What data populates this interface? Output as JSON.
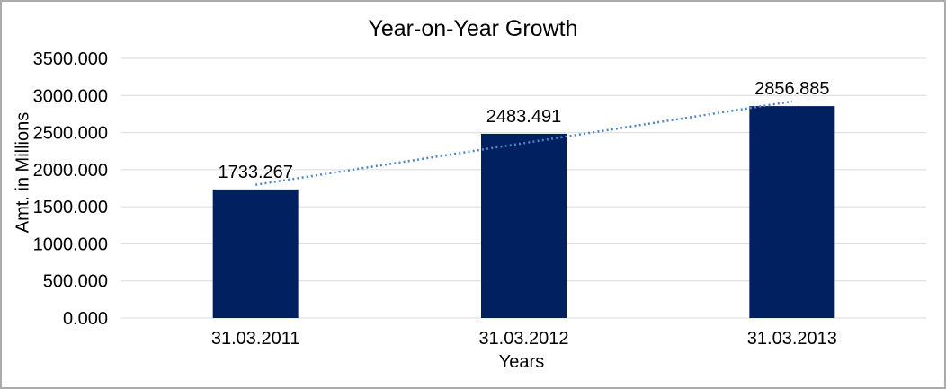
{
  "chart_data": {
    "type": "bar",
    "title": "Year-on-Year Growth",
    "xlabel": "Years",
    "ylabel": "Amt. in Millions",
    "categories": [
      "31.03.2011",
      "31.03.2012",
      "31.03.2013"
    ],
    "values": [
      1733.267,
      2483.491,
      2856.885
    ],
    "data_labels": [
      "1733.267",
      "2483.491",
      "2856.885"
    ],
    "y_ticks": [
      "3500.000",
      "3000.000",
      "2500.000",
      "2000.000",
      "1500.000",
      "1000.000",
      "500.000",
      "0.000"
    ],
    "ylim": [
      0,
      3500
    ],
    "grid": true,
    "legend": "none",
    "trendline": {
      "type": "linear",
      "style": "dotted"
    },
    "colors": {
      "bar": "#002060",
      "trendline": "#4f87c7",
      "gridline": "#d9d9d9",
      "text": "#000000",
      "frame_border": "#ababab"
    }
  }
}
